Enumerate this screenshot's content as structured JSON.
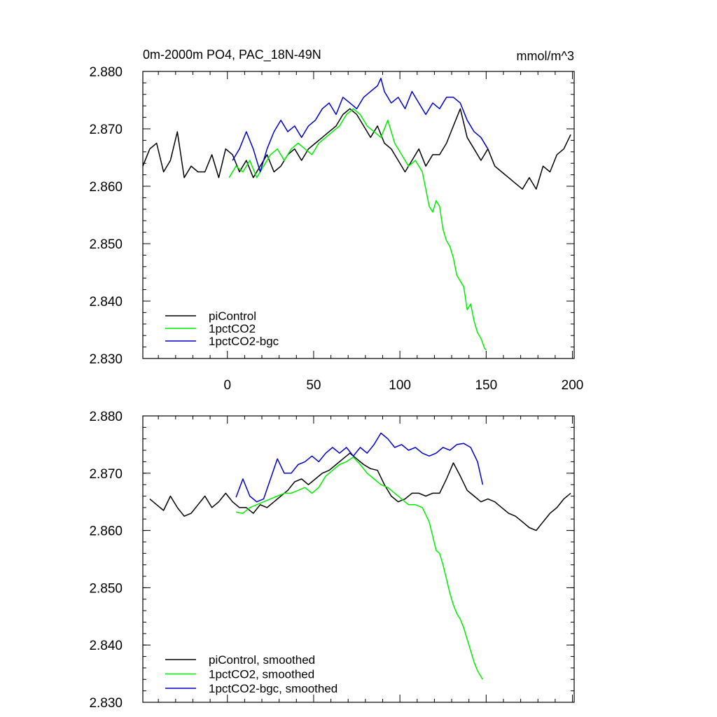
{
  "chart_data": [
    {
      "type": "line",
      "title": "0m-2000m PO4, PAC_18N-49N",
      "units": "mmol/m^3",
      "xlim": [
        -49,
        201
      ],
      "ylim": [
        2.83,
        2.88
      ],
      "x_ticks": [
        0,
        50,
        100,
        150,
        200
      ],
      "x_tick_labels": [
        "0",
        "50",
        "100",
        "150",
        "200"
      ],
      "y_ticks": [
        2.83,
        2.84,
        2.85,
        2.86,
        2.87,
        2.88
      ],
      "y_tick_labels": [
        "2.830",
        "2.840",
        "2.850",
        "2.860",
        "2.870",
        "2.880"
      ],
      "legend_position": "bottom-left",
      "series": [
        {
          "name": "piControl",
          "color": "#000000",
          "x": [
            -49,
            -45,
            -41,
            -37,
            -33,
            -29,
            -25,
            -21,
            -17,
            -13,
            -9,
            -5,
            -1,
            3,
            7,
            11,
            15,
            19,
            23,
            27,
            31,
            35,
            39,
            43,
            47,
            51,
            55,
            59,
            63,
            67,
            71,
            75,
            79,
            83,
            87,
            91,
            95,
            99,
            103,
            107,
            111,
            115,
            119,
            123,
            127,
            131,
            135,
            139,
            143,
            147,
            151,
            155,
            159,
            163,
            167,
            171,
            175,
            179,
            183,
            187,
            191,
            195,
            199
          ],
          "values": [
            2.8635,
            2.8665,
            2.8675,
            2.8625,
            2.8645,
            2.8695,
            2.8615,
            2.8635,
            2.8625,
            2.8625,
            2.8655,
            2.8615,
            2.8665,
            2.8655,
            2.8625,
            2.8645,
            2.8615,
            2.8635,
            2.8655,
            2.8625,
            2.8635,
            2.8655,
            2.8665,
            2.8645,
            2.8665,
            2.8675,
            2.8685,
            2.8695,
            2.8705,
            2.8725,
            2.8735,
            2.8725,
            2.8705,
            2.8685,
            2.8705,
            2.8675,
            2.8665,
            2.8645,
            2.8625,
            2.8645,
            2.8665,
            2.8635,
            2.8655,
            2.8655,
            2.8675,
            2.8705,
            2.8735,
            2.8685,
            2.8665,
            2.8645,
            2.8665,
            2.8635,
            2.8625,
            2.8615,
            2.8605,
            2.8595,
            2.8615,
            2.8595,
            2.8635,
            2.8625,
            2.8655,
            2.8665,
            2.869
          ]
        },
        {
          "name": "1pctCO2",
          "color": "#00ee00",
          "x": [
            1,
            5,
            9,
            13,
            17,
            21,
            25,
            29,
            33,
            37,
            41,
            45,
            49,
            53,
            57,
            61,
            65,
            69,
            73,
            77,
            81,
            85,
            89,
            93,
            97,
            101,
            105,
            109,
            113,
            115,
            117,
            119,
            121,
            123,
            125,
            127,
            129,
            131,
            133,
            135,
            137,
            139,
            141,
            143,
            145,
            147,
            149,
            150
          ],
          "values": [
            2.8615,
            2.8635,
            2.8625,
            2.8645,
            2.8615,
            2.8635,
            2.8655,
            2.8665,
            2.8645,
            2.8665,
            2.8675,
            2.8665,
            2.8655,
            2.8675,
            2.8685,
            2.8695,
            2.8705,
            2.8725,
            2.8735,
            2.8725,
            2.8705,
            2.8695,
            2.8685,
            2.8715,
            2.8675,
            2.8655,
            2.8635,
            2.8645,
            2.8625,
            2.8595,
            2.8565,
            2.8555,
            2.8575,
            2.8565,
            2.8525,
            2.8505,
            2.8495,
            2.8475,
            2.8445,
            2.8435,
            2.8425,
            2.8385,
            2.8395,
            2.8365,
            2.8345,
            2.8335,
            2.8318,
            2.8315
          ]
        },
        {
          "name": "1pctCO2-bgc",
          "color": "#0000cc",
          "x": [
            3,
            7,
            11,
            15,
            19,
            23,
            27,
            31,
            35,
            39,
            43,
            47,
            51,
            55,
            59,
            63,
            67,
            71,
            75,
            79,
            83,
            87,
            89,
            91,
            95,
            99,
            103,
            107,
            111,
            115,
            119,
            123,
            127,
            131,
            135,
            139,
            143,
            147,
            151
          ],
          "values": [
            2.8645,
            2.8665,
            2.8695,
            2.8665,
            2.8625,
            2.8665,
            2.8695,
            2.8715,
            2.8695,
            2.8705,
            2.8685,
            2.8705,
            2.8715,
            2.8735,
            2.8745,
            2.8725,
            2.8755,
            2.8745,
            2.8735,
            2.8755,
            2.8765,
            2.8775,
            2.8788,
            2.8765,
            2.8745,
            2.8755,
            2.8735,
            2.8765,
            2.8745,
            2.8725,
            2.8745,
            2.8735,
            2.8755,
            2.8755,
            2.8745,
            2.8715,
            2.8695,
            2.8685,
            2.8665
          ]
        }
      ]
    },
    {
      "type": "line",
      "title": "",
      "xlim": [
        -49,
        201
      ],
      "ylim": [
        2.83,
        2.88
      ],
      "x_ticks": [
        0,
        50,
        100,
        150,
        200
      ],
      "y_ticks": [
        2.83,
        2.84,
        2.85,
        2.86,
        2.87,
        2.88
      ],
      "y_tick_labels": [
        "2.830",
        "2.840",
        "2.850",
        "2.860",
        "2.870",
        "2.880"
      ],
      "legend_position": "bottom-left",
      "series": [
        {
          "name": "piControl, smoothed",
          "color": "#000000",
          "x": [
            -45,
            -41,
            -37,
            -33,
            -29,
            -25,
            -21,
            -17,
            -13,
            -9,
            -5,
            -1,
            3,
            7,
            11,
            15,
            19,
            23,
            27,
            31,
            35,
            39,
            43,
            47,
            51,
            55,
            59,
            63,
            67,
            71,
            75,
            79,
            83,
            87,
            91,
            95,
            99,
            103,
            107,
            111,
            115,
            119,
            123,
            127,
            131,
            135,
            139,
            143,
            147,
            151,
            155,
            159,
            163,
            167,
            171,
            175,
            179,
            183,
            187,
            191,
            195,
            199
          ],
          "values": [
            2.8655,
            2.8645,
            2.8635,
            2.866,
            2.864,
            2.8625,
            2.863,
            2.8645,
            2.866,
            2.864,
            2.865,
            2.8665,
            2.865,
            2.864,
            2.864,
            2.863,
            2.8645,
            2.864,
            2.865,
            2.866,
            2.867,
            2.8685,
            2.869,
            2.868,
            2.869,
            2.87,
            2.8705,
            2.8715,
            2.8725,
            2.8735,
            2.8725,
            2.8715,
            2.8708,
            2.8705,
            2.868,
            2.866,
            2.865,
            2.8655,
            2.8665,
            2.8665,
            2.866,
            2.8665,
            2.8665,
            2.869,
            2.8718,
            2.8695,
            2.867,
            2.866,
            2.865,
            2.8655,
            2.865,
            2.864,
            2.863,
            2.8625,
            2.8615,
            2.8605,
            2.86,
            2.8615,
            2.863,
            2.864,
            2.8655,
            2.8665
          ]
        },
        {
          "name": "1pctCO2, smoothed",
          "color": "#00ee00",
          "x": [
            5,
            9,
            13,
            17,
            21,
            25,
            29,
            33,
            37,
            41,
            45,
            49,
            53,
            57,
            61,
            65,
            69,
            73,
            77,
            81,
            85,
            89,
            93,
            97,
            101,
            105,
            109,
            113,
            117,
            119,
            121,
            123,
            125,
            127,
            129,
            131,
            133,
            135,
            137,
            139,
            141,
            143,
            145,
            147,
            148
          ],
          "values": [
            2.8632,
            2.863,
            2.864,
            2.8645,
            2.865,
            2.8655,
            2.866,
            2.8665,
            2.8665,
            2.867,
            2.8675,
            2.8665,
            2.8675,
            2.8695,
            2.8705,
            2.8715,
            2.872,
            2.8728,
            2.8715,
            2.87,
            2.869,
            2.868,
            2.8675,
            2.8665,
            2.8655,
            2.8645,
            2.8645,
            2.864,
            2.8615,
            2.859,
            2.8565,
            2.856,
            2.854,
            2.8515,
            2.849,
            2.847,
            2.8455,
            2.8445,
            2.843,
            2.841,
            2.839,
            2.837,
            2.8355,
            2.8345,
            2.834
          ]
        },
        {
          "name": "1pctCO2-bgc, smoothed",
          "color": "#0000cc",
          "x": [
            5,
            9,
            13,
            17,
            21,
            25,
            29,
            33,
            37,
            41,
            45,
            49,
            53,
            57,
            61,
            65,
            69,
            73,
            77,
            81,
            85,
            89,
            93,
            97,
            101,
            105,
            109,
            113,
            117,
            121,
            125,
            129,
            133,
            137,
            141,
            145,
            148
          ],
          "values": [
            2.8658,
            2.869,
            2.866,
            2.865,
            2.8655,
            2.869,
            2.8725,
            2.87,
            2.87,
            2.8715,
            2.872,
            2.873,
            2.872,
            2.8735,
            2.8745,
            2.8735,
            2.8745,
            2.873,
            2.8745,
            2.8735,
            2.875,
            2.877,
            2.876,
            2.8745,
            2.875,
            2.874,
            2.8745,
            2.8735,
            2.873,
            2.8735,
            2.8745,
            2.874,
            2.875,
            2.8752,
            2.8745,
            2.872,
            2.868
          ]
        }
      ]
    }
  ]
}
